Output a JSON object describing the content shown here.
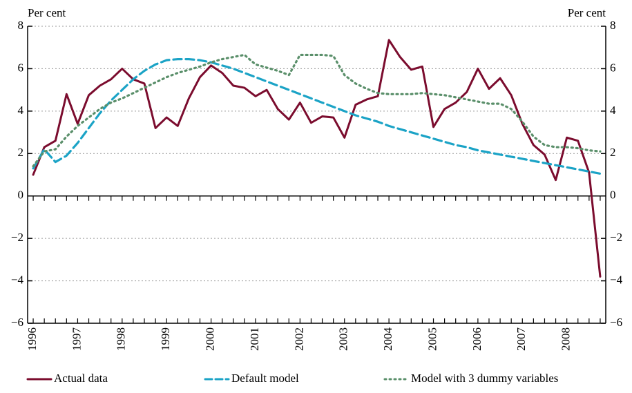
{
  "chart_data": {
    "type": "line",
    "ylabel": "Per cent",
    "y2label": "Per cent",
    "categories": [
      "1996",
      null,
      null,
      null,
      "1997",
      null,
      null,
      null,
      "1998",
      null,
      null,
      null,
      "1999",
      null,
      null,
      null,
      "2000",
      null,
      null,
      null,
      "2001",
      null,
      null,
      null,
      "2002",
      null,
      null,
      null,
      "2003",
      null,
      null,
      null,
      "2004",
      null,
      null,
      null,
      "2005",
      null,
      null,
      null,
      "2006",
      null,
      null,
      null,
      "2007",
      null,
      null,
      null,
      "2008",
      null,
      null,
      null
    ],
    "series": [
      {
        "name": "Actual data",
        "color": "#7b0c2e",
        "style": "solid",
        "values": [
          1.0,
          2.3,
          2.6,
          4.8,
          3.4,
          4.75,
          5.2,
          5.5,
          6.0,
          5.5,
          5.3,
          3.2,
          3.7,
          3.3,
          4.6,
          5.6,
          6.15,
          5.8,
          5.2,
          5.1,
          4.7,
          5.0,
          4.1,
          3.6,
          4.4,
          3.45,
          3.75,
          3.7,
          2.75,
          4.3,
          4.55,
          4.7,
          7.35,
          6.55,
          5.95,
          6.1,
          3.25,
          4.1,
          4.4,
          4.9,
          6.0,
          5.05,
          5.55,
          4.75,
          3.4,
          2.4,
          1.95,
          0.75,
          2.75,
          2.6,
          1.1,
          -3.8
        ]
      },
      {
        "name": "Default model",
        "color": "#1ba3c6",
        "style": "dashed",
        "values": [
          1.3,
          2.2,
          1.6,
          1.9,
          2.5,
          3.2,
          3.9,
          4.5,
          5.0,
          5.5,
          5.9,
          6.2,
          6.4,
          6.45,
          6.45,
          6.4,
          6.3,
          6.15,
          6.0,
          5.8,
          5.6,
          5.4,
          5.2,
          5.0,
          4.8,
          4.6,
          4.4,
          4.2,
          4.0,
          3.8,
          3.65,
          3.5,
          3.3,
          3.15,
          3.0,
          2.85,
          2.7,
          2.55,
          2.4,
          2.3,
          2.15,
          2.05,
          1.95,
          1.85,
          1.75,
          1.65,
          1.55,
          1.45,
          1.35,
          1.25,
          1.15,
          1.05
        ]
      },
      {
        "name": "Model with 3 dummy variables",
        "color": "#5a8f6a",
        "style": "dotted",
        "values": [
          1.4,
          2.1,
          2.2,
          2.8,
          3.3,
          3.7,
          4.1,
          4.4,
          4.6,
          4.85,
          5.1,
          5.35,
          5.6,
          5.8,
          5.95,
          6.1,
          6.3,
          6.45,
          6.55,
          6.65,
          6.2,
          6.05,
          5.9,
          5.7,
          6.65,
          6.65,
          6.65,
          6.6,
          5.7,
          5.3,
          5.05,
          4.85,
          4.8,
          4.8,
          4.8,
          4.85,
          4.8,
          4.75,
          4.65,
          4.55,
          4.45,
          4.35,
          4.35,
          4.1,
          3.5,
          2.8,
          2.4,
          2.3,
          2.3,
          2.25,
          2.15,
          2.1
        ]
      }
    ],
    "ylim": [
      -6,
      8
    ],
    "yticks": [
      {
        "value": -6,
        "label": "−6"
      },
      {
        "value": -4,
        "label": "−4"
      },
      {
        "value": -2,
        "label": "−2"
      },
      0,
      2,
      4,
      6,
      8
    ],
    "y2lim": [
      -6,
      8
    ],
    "y2ticks": [
      {
        "value": -6,
        "label": "−6"
      },
      {
        "value": -4,
        "label": "−4"
      },
      {
        "value": -2,
        "label": "−2"
      },
      0,
      2,
      4,
      6,
      8
    ],
    "grid": true,
    "legend": "bottom"
  }
}
